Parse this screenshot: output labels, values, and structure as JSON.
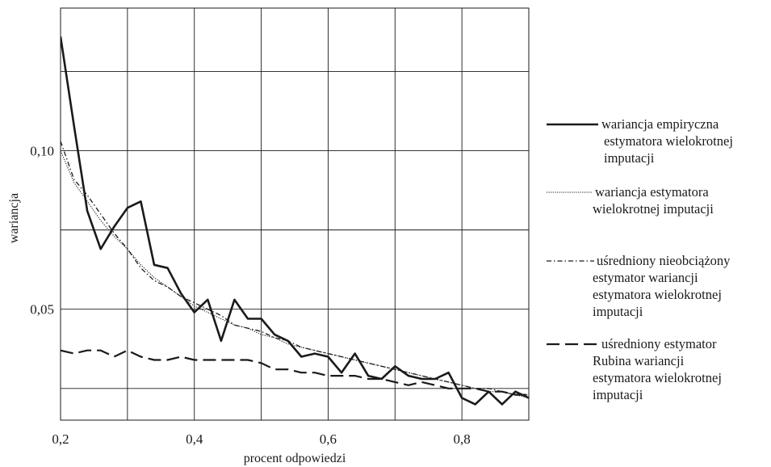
{
  "chart_data": {
    "type": "line",
    "title": "",
    "xlabel": "procent odpowiedzi",
    "ylabel": "wariancja",
    "xlim": [
      0.2,
      0.9
    ],
    "ylim": [
      0.015,
      0.145
    ],
    "grid": true,
    "legend_position": "right",
    "x_ticks": [
      {
        "value": 0.2,
        "label": "0,2"
      },
      {
        "value": 0.4,
        "label": "0,4"
      },
      {
        "value": 0.6,
        "label": "0,6"
      },
      {
        "value": 0.8,
        "label": "0,8"
      }
    ],
    "y_ticks": [
      {
        "value": 0.05,
        "label": "0,05"
      },
      {
        "value": 0.1,
        "label": "0,10"
      }
    ],
    "x_grid": [
      0.2,
      0.3,
      0.4,
      0.5,
      0.6,
      0.7,
      0.8,
      0.9
    ],
    "y_grid": [
      0.025,
      0.05,
      0.075,
      0.1,
      0.125
    ],
    "series": [
      {
        "name": "wariancja empiryczna estymatora wielokrotnej imputacji",
        "style": "solid",
        "x": [
          0.2,
          0.22,
          0.24,
          0.26,
          0.28,
          0.3,
          0.32,
          0.34,
          0.36,
          0.38,
          0.4,
          0.42,
          0.44,
          0.46,
          0.48,
          0.5,
          0.52,
          0.54,
          0.56,
          0.58,
          0.6,
          0.62,
          0.64,
          0.66,
          0.68,
          0.7,
          0.72,
          0.74,
          0.76,
          0.78,
          0.8,
          0.82,
          0.84,
          0.86,
          0.88,
          0.9
        ],
        "y": [
          0.136,
          0.108,
          0.081,
          0.069,
          0.076,
          0.082,
          0.084,
          0.064,
          0.063,
          0.055,
          0.049,
          0.053,
          0.04,
          0.053,
          0.047,
          0.047,
          0.042,
          0.04,
          0.035,
          0.036,
          0.035,
          0.03,
          0.036,
          0.029,
          0.028,
          0.032,
          0.029,
          0.028,
          0.028,
          0.03,
          0.022,
          0.02,
          0.024,
          0.02,
          0.024,
          0.022
        ]
      },
      {
        "name": "wariancja estymatora wielokrotnej imputacji",
        "style": "dotted",
        "x": [
          0.2,
          0.22,
          0.24,
          0.26,
          0.28,
          0.3,
          0.32,
          0.34,
          0.36,
          0.38,
          0.4,
          0.42,
          0.44,
          0.46,
          0.48,
          0.5,
          0.52,
          0.54,
          0.56,
          0.58,
          0.6,
          0.62,
          0.64,
          0.66,
          0.68,
          0.7,
          0.72,
          0.74,
          0.76,
          0.78,
          0.8,
          0.82,
          0.84,
          0.86,
          0.88,
          0.9
        ],
        "y": [
          0.1,
          0.09,
          0.084,
          0.078,
          0.073,
          0.069,
          0.064,
          0.06,
          0.057,
          0.054,
          0.051,
          0.049,
          0.047,
          0.045,
          0.044,
          0.042,
          0.041,
          0.039,
          0.038,
          0.037,
          0.036,
          0.035,
          0.034,
          0.033,
          0.032,
          0.031,
          0.03,
          0.029,
          0.028,
          0.027,
          0.026,
          0.025,
          0.024,
          0.024,
          0.023,
          0.022
        ]
      },
      {
        "name": "uśredniony nieobciążony estymator wariancji estymatora wielokrotnej imputacji",
        "style": "dashdot",
        "x": [
          0.2,
          0.22,
          0.24,
          0.26,
          0.28,
          0.3,
          0.32,
          0.34,
          0.36,
          0.38,
          0.4,
          0.42,
          0.44,
          0.46,
          0.48,
          0.5,
          0.52,
          0.54,
          0.56,
          0.58,
          0.6,
          0.62,
          0.64,
          0.66,
          0.68,
          0.7,
          0.72,
          0.74,
          0.76,
          0.78,
          0.8,
          0.82,
          0.84,
          0.86,
          0.88,
          0.9
        ],
        "y": [
          0.103,
          0.091,
          0.086,
          0.08,
          0.074,
          0.069,
          0.063,
          0.059,
          0.057,
          0.054,
          0.052,
          0.05,
          0.048,
          0.045,
          0.044,
          0.043,
          0.041,
          0.04,
          0.038,
          0.037,
          0.036,
          0.035,
          0.034,
          0.033,
          0.032,
          0.031,
          0.03,
          0.029,
          0.028,
          0.027,
          0.026,
          0.025,
          0.025,
          0.024,
          0.023,
          0.023
        ]
      },
      {
        "name": "uśredniony estymator Rubina wariancji estymatora wielokrotnej imputacji",
        "style": "longdash",
        "x": [
          0.2,
          0.22,
          0.24,
          0.26,
          0.28,
          0.3,
          0.32,
          0.34,
          0.36,
          0.38,
          0.4,
          0.42,
          0.44,
          0.46,
          0.48,
          0.5,
          0.52,
          0.54,
          0.56,
          0.58,
          0.6,
          0.62,
          0.64,
          0.66,
          0.68,
          0.7,
          0.72,
          0.74,
          0.76,
          0.78,
          0.8,
          0.82,
          0.84,
          0.86,
          0.88,
          0.9
        ],
        "y": [
          0.037,
          0.036,
          0.037,
          0.037,
          0.035,
          0.037,
          0.035,
          0.034,
          0.034,
          0.035,
          0.034,
          0.034,
          0.034,
          0.034,
          0.034,
          0.033,
          0.031,
          0.031,
          0.03,
          0.03,
          0.029,
          0.029,
          0.029,
          0.028,
          0.028,
          0.027,
          0.026,
          0.027,
          0.026,
          0.025,
          0.025,
          0.025,
          0.024,
          0.024,
          0.023,
          0.023
        ]
      }
    ],
    "legend": [
      {
        "style": "solid",
        "lines": [
          "wariancja empiryczna",
          "estymatora wielokrotnej",
          "imputacji"
        ]
      },
      {
        "style": "dotted",
        "lines": [
          "wariancja estymatora",
          "wielokrotnej imputacji"
        ]
      },
      {
        "style": "dashdot",
        "lines": [
          "uśredniony nieobciążony",
          "estymator wariancji",
          "estymatora wielokrotnej",
          "imputacji"
        ]
      },
      {
        "style": "longdash",
        "lines": [
          "uśredniony estymator",
          "Rubina wariancji",
          "estymatora wielokrotnej",
          "imputacji"
        ]
      }
    ]
  }
}
